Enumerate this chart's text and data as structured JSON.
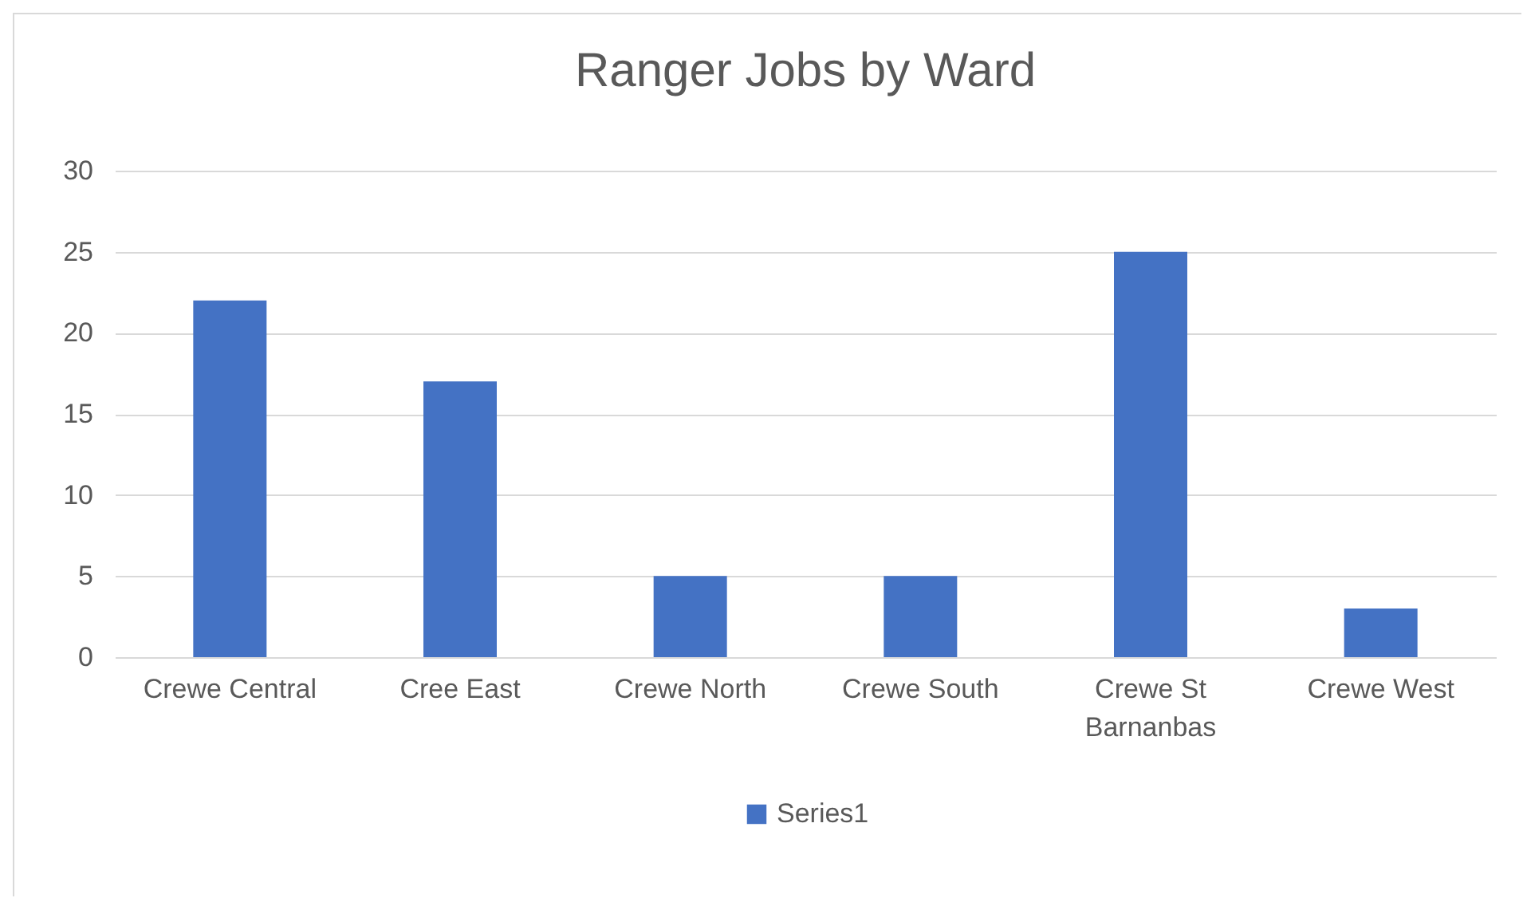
{
  "chart_data": {
    "type": "bar",
    "title": "Ranger Jobs by Ward",
    "categories": [
      "Crewe Central",
      "Cree East",
      "Crewe North",
      "Crewe South",
      "Crewe St Barnanbas",
      "Crewe West"
    ],
    "series": [
      {
        "name": "Series1",
        "color": "#4472c4",
        "values": [
          22,
          17,
          5,
          5,
          25,
          3
        ]
      }
    ],
    "ylim": [
      0,
      30
    ],
    "yticks": [
      0,
      5,
      10,
      15,
      20,
      25,
      30
    ],
    "grid": "y",
    "legend": "bottom"
  }
}
